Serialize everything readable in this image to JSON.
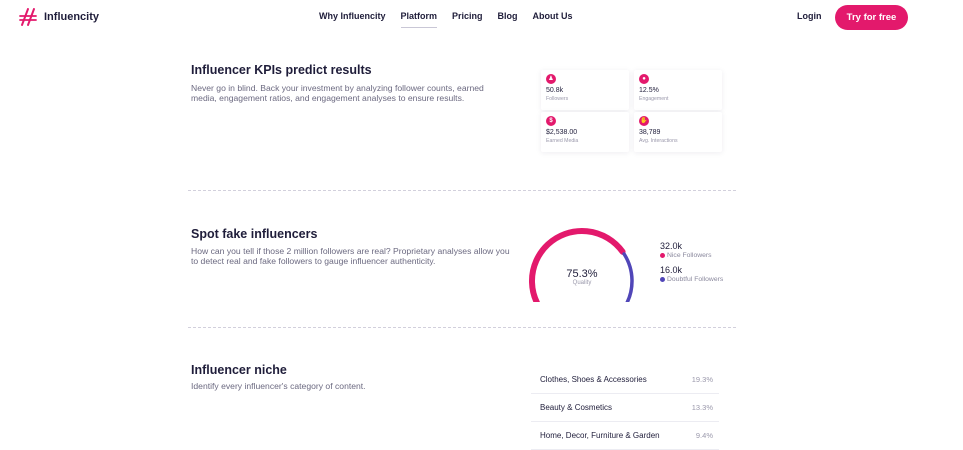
{
  "brand": {
    "name": "Influencity",
    "accent": "#e3196c",
    "secondary": "#5046b8"
  },
  "nav": {
    "links": [
      "Why Influencity",
      "Platform",
      "Pricing",
      "Blog",
      "About Us"
    ],
    "active": "Platform",
    "login": "Login",
    "cta": "Try for free"
  },
  "kpi_section": {
    "title": "Influencer KPIs predict results",
    "description": "Never go in blind. Back your investment by analyzing follower counts, earned media, engagement ratios, and engagement analyses to ensure results.",
    "cards": [
      {
        "icon": "followers-icon",
        "value": "50.8k",
        "label": "Followers"
      },
      {
        "icon": "engagement-icon",
        "value": "12.5%",
        "label": "Engagement"
      },
      {
        "icon": "dollar-icon",
        "value": "$2,538.00",
        "label": "Earned Media"
      },
      {
        "icon": "hand-icon",
        "value": "38,789",
        "label": "Avg. Interactions"
      }
    ]
  },
  "fake_section": {
    "title": "Spot fake influencers",
    "description": "How can you tell if those 2 million followers are real? Proprietary analyses allow you to detect real and fake followers to gauge influencer authenticity.",
    "gauge": {
      "value": "75.3%",
      "label": "Quality",
      "fraction": 0.753
    },
    "legend": [
      {
        "value": "32.0k",
        "label": "Nice Followers",
        "color": "#e3196c"
      },
      {
        "value": "16.0k",
        "label": "Doubtful Followers",
        "color": "#5046b8"
      }
    ]
  },
  "niche_section": {
    "title": "Influencer niche",
    "description": "Identify every influencer's category of content.",
    "rows": [
      {
        "name": "Clothes, Shoes & Accessories",
        "pct": "19.3%"
      },
      {
        "name": "Beauty & Cosmetics",
        "pct": "13.3%"
      },
      {
        "name": "Home, Decor, Furniture & Garden",
        "pct": "9.4%"
      }
    ]
  }
}
